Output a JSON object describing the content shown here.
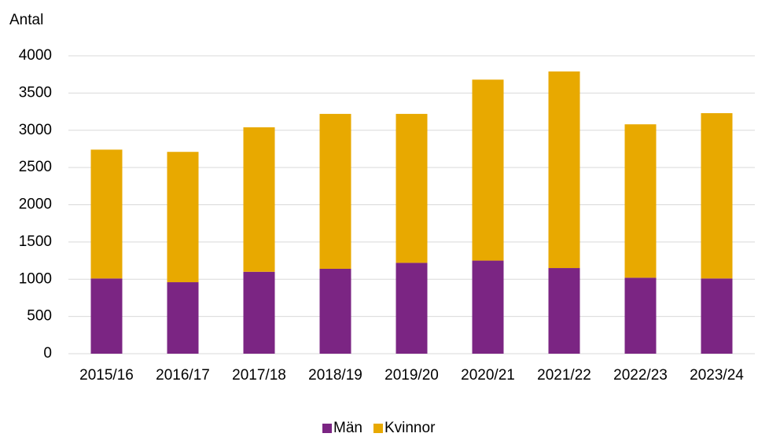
{
  "chart_data": {
    "type": "stacked_bar",
    "ylabel": "Antal",
    "categories": [
      "2015/16",
      "2016/17",
      "2017/18",
      "2018/19",
      "2019/20",
      "2020/21",
      "2021/22",
      "2022/23",
      "2023/24"
    ],
    "series": [
      {
        "name": "Män",
        "color": "#7b2583",
        "values": [
          1010,
          960,
          1100,
          1140,
          1220,
          1250,
          1150,
          1020,
          1010
        ]
      },
      {
        "name": "Kvinnor",
        "color": "#e8a900",
        "values": [
          1730,
          1750,
          1940,
          2080,
          2000,
          2430,
          2640,
          2060,
          2220
        ]
      }
    ],
    "ylim": [
      0,
      4000
    ],
    "yticks": [
      0,
      500,
      1000,
      1500,
      2000,
      2500,
      3000,
      3500,
      4000
    ],
    "grid": true,
    "legend": "bottom"
  }
}
